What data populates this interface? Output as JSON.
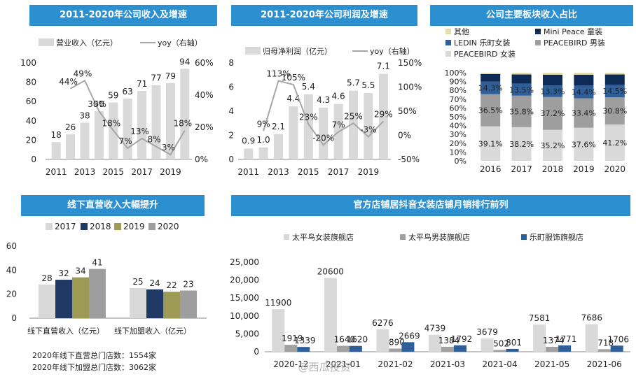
{
  "colors": {
    "header_bg": "#2b8fd0",
    "bar_light": "#d9d9d9",
    "line_gray": "#a6a6a6",
    "navy": "#1f3864",
    "olive": "#9c9a55",
    "mid_gray": "#9e9e9e",
    "tan": "#e6dcab",
    "dark_navy": "#0e2a57",
    "blue": "#2e5f99",
    "series_gray": "#a0a0a0"
  },
  "chart_data": [
    {
      "id": "revenue",
      "type": "bar",
      "title": "2011-2020年公司收入及增速",
      "legend": [
        "营业收入（亿元）",
        "yoy（右轴）"
      ],
      "categories": [
        "2011",
        "2012",
        "2013",
        "2014",
        "2015",
        "2016",
        "2017",
        "2018",
        "2019",
        "2020"
      ],
      "x_tick_labels": [
        "2011",
        "2013",
        "2015",
        "2017",
        "2019"
      ],
      "values": [
        18,
        26,
        38,
        50,
        59,
        63,
        71,
        77,
        79,
        94
      ],
      "value_labels": [
        "18",
        "26",
        "38",
        "50",
        "59",
        "63",
        "71",
        "77",
        "79",
        "94"
      ],
      "yoy": [
        null,
        44,
        49,
        30,
        18,
        7,
        13,
        8,
        3,
        18
      ],
      "yoy_labels": [
        "",
        "44%",
        "49%",
        "30%",
        "18%",
        "7%",
        "13%",
        "8%",
        "3%",
        "18%"
      ],
      "ylim": [
        0,
        100
      ],
      "y_ticks": [
        "0",
        "20",
        "40",
        "60",
        "80",
        "100"
      ],
      "y2lim": [
        0,
        60
      ],
      "y2_ticks": [
        "0%",
        "20%",
        "40%",
        "60%"
      ]
    },
    {
      "id": "profit",
      "type": "bar",
      "title": "2011-2020年公司利润及增速",
      "legend": [
        "归母净利润（亿元）",
        "yoy（右轴）"
      ],
      "categories": [
        "2011",
        "2012",
        "2013",
        "2014",
        "2015",
        "2016",
        "2017",
        "2018",
        "2019",
        "2020"
      ],
      "x_tick_labels": [
        "2011",
        "2013",
        "2015",
        "2017",
        "2019"
      ],
      "values": [
        0.9,
        1.0,
        2.1,
        4.4,
        5.4,
        4.3,
        4.6,
        5.7,
        5.5,
        7.1
      ],
      "value_labels": [
        "0.9",
        "1.0",
        "2.1",
        "4.4",
        "5.4",
        "4.3",
        "4.6",
        "5.7",
        "5.5",
        "7.1"
      ],
      "yoy": [
        null,
        9,
        113,
        105,
        23,
        -20,
        7,
        25,
        -3,
        29
      ],
      "yoy_labels": [
        "",
        "9%",
        "113%",
        "105%",
        "23%",
        "-20%",
        "7%",
        "25%",
        "-3%",
        "29%"
      ],
      "ylim": [
        0,
        8
      ],
      "y_ticks": [
        "0",
        "2",
        "4",
        "6",
        "8"
      ],
      "y2lim": [
        -50,
        150
      ],
      "y2_ticks": [
        "-50%",
        "0%",
        "50%",
        "100%",
        "150%"
      ]
    },
    {
      "id": "segments",
      "type": "bar",
      "stacked": true,
      "title": "公司主要板块收入占比",
      "categories": [
        "2016",
        "2017",
        "2018",
        "2019",
        "2020"
      ],
      "series": [
        {
          "name": "PEACEBIRD 女装",
          "values": [
            39.1,
            38.2,
            35.2,
            37.6,
            41.2
          ],
          "labels": [
            "39.1%",
            "38.2%",
            "35.2%",
            "37.6%",
            "41.2%"
          ]
        },
        {
          "name": "PEACEBIRD 男装",
          "values": [
            36.5,
            35.8,
            37.2,
            33.4,
            30.8
          ],
          "labels": [
            "36.5%",
            "35.8%",
            "37.2%",
            "33.4%",
            "30.8%"
          ]
        },
        {
          "name": "LEDIN 乐町女装",
          "values": [
            14.3,
            13.5,
            13.3,
            14.4,
            14.5
          ],
          "labels": [
            "14.3%",
            "13.5%",
            "13.3%",
            "14.4%",
            "14.5%"
          ]
        },
        {
          "name": "Mini Peace 童装",
          "values": [
            8.6,
            10.5,
            12.1,
            12.4,
            11.5
          ]
        },
        {
          "name": "其他",
          "values": [
            1.5,
            2.0,
            2.2,
            2.2,
            2.0
          ]
        }
      ],
      "legend_order": [
        "其他",
        "Mini Peace 童装",
        "LEDIN 乐町女装",
        "PEACEBIRD 男装",
        "PEACEBIRD 女装"
      ],
      "ylim": [
        0,
        100
      ],
      "y_ticks": [
        "0%",
        "10%",
        "20%",
        "30%",
        "40%",
        "50%",
        "60%",
        "70%",
        "80%",
        "90%",
        "100%"
      ]
    },
    {
      "id": "offline",
      "type": "bar",
      "title": "线下直营收入大幅提升",
      "categories": [
        "线下直营收入（亿元）",
        "线下加盟收入（亿元）"
      ],
      "series": [
        {
          "name": "2017",
          "values": [
            28,
            25
          ]
        },
        {
          "name": "2018",
          "values": [
            32,
            24
          ]
        },
        {
          "name": "2019",
          "values": [
            34,
            22
          ]
        },
        {
          "name": "2020",
          "values": [
            41,
            23
          ]
        }
      ],
      "ylim": [
        0,
        60
      ],
      "y_ticks": [
        "0",
        "20",
        "40",
        "60"
      ]
    },
    {
      "id": "douyin",
      "type": "bar",
      "title": "官方店铺居抖音女装店铺月销排行前列",
      "categories": [
        "2020-12",
        "2021-01",
        "2021-02",
        "2021-03",
        "2021-04",
        "2021-05",
        "2021-06"
      ],
      "series": [
        {
          "name": "太平鸟女装旗舰店",
          "values": [
            11900,
            20600,
            6276,
            4739,
            3679,
            7581,
            7686
          ]
        },
        {
          "name": "太平鸟男装旗舰店",
          "values": [
            1919,
            1640,
            890,
            1384,
            502,
            1374,
            718
          ]
        },
        {
          "name": "乐町服饰旗舰店",
          "values": [
            1339,
            1620,
            2669,
            1792,
            801,
            1771,
            1706
          ]
        }
      ],
      "ylim": [
        0,
        25000
      ],
      "y_ticks": [
        "0",
        "5,000",
        "10,000",
        "15,000",
        "20,000",
        "25,000"
      ]
    }
  ],
  "notes": {
    "stores_direct": "2020年线下直营总门店数：1554家",
    "stores_franchise": "2020年线下加盟总门店数：3062家"
  },
  "watermark": "@西瓜投资"
}
